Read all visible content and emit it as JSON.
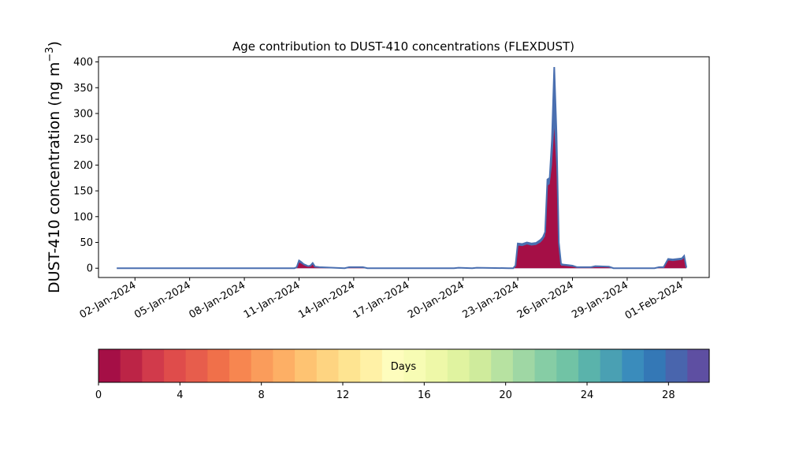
{
  "chart_data": {
    "type": "area",
    "title": "Age contribution to DUST-410 concentrations (FLEXDUST)",
    "ylabel": "DUST-410 concentration (ng m",
    "ylabel_sup": "−3",
    "ylabel_close": ")",
    "xlabel": "",
    "ylim": [
      -18,
      410
    ],
    "xlim": [
      "2023-12-31T00:00",
      "2024-02-02T12:00"
    ],
    "yticks": [
      0,
      50,
      100,
      150,
      200,
      250,
      300,
      350,
      400
    ],
    "xticks": [
      "2024-01-02",
      "2024-01-05",
      "2024-01-08",
      "2024-01-11",
      "2024-01-14",
      "2024-01-17",
      "2024-01-20",
      "2024-01-23",
      "2024-01-26",
      "2024-01-29",
      "2024-02-01"
    ],
    "xtick_labels": [
      "02-Jan-2024",
      "05-Jan-2024",
      "08-Jan-2024",
      "11-Jan-2024",
      "14-Jan-2024",
      "17-Jan-2024",
      "20-Jan-2024",
      "23-Jan-2024",
      "26-Jan-2024",
      "29-Jan-2024",
      "01-Feb-2024"
    ],
    "grid": false,
    "total_line_color": "#4a6fb0",
    "fill_color": "#a50f46",
    "x": [
      "2024-01-01T00:00",
      "2024-01-10T18:00",
      "2024-01-10T21:00",
      "2024-01-11T00:00",
      "2024-01-11T03:00",
      "2024-01-11T06:00",
      "2024-01-11T09:00",
      "2024-01-11T12:00",
      "2024-01-11T15:00",
      "2024-01-11T18:00",
      "2024-01-11T21:00",
      "2024-01-12T03:00",
      "2024-01-13T12:00",
      "2024-01-13T18:00",
      "2024-01-14T12:00",
      "2024-01-14T18:00",
      "2024-01-19T12:00",
      "2024-01-19T18:00",
      "2024-01-20T12:00",
      "2024-01-20T18:00",
      "2024-01-22T12:00",
      "2024-01-22T18:00",
      "2024-01-22T21:00",
      "2024-01-23T00:00",
      "2024-01-23T06:00",
      "2024-01-23T12:00",
      "2024-01-23T18:00",
      "2024-01-24T00:00",
      "2024-01-24T06:00",
      "2024-01-24T09:00",
      "2024-01-24T12:00",
      "2024-01-24T15:00",
      "2024-01-24T18:00",
      "2024-01-24T21:00",
      "2024-01-25T00:00",
      "2024-01-25T03:00",
      "2024-01-25T06:00",
      "2024-01-25T09:00",
      "2024-01-25T12:00",
      "2024-01-25T18:00",
      "2024-01-26T00:00",
      "2024-01-26T06:00",
      "2024-01-27T00:00",
      "2024-01-27T06:00",
      "2024-01-28T00:00",
      "2024-01-28T06:00",
      "2024-01-30T12:00",
      "2024-01-30T18:00",
      "2024-01-31T00:00",
      "2024-01-31T06:00",
      "2024-01-31T12:00",
      "2024-01-31T18:00",
      "2024-02-01T00:00",
      "2024-02-01T03:00",
      "2024-02-01T06:00"
    ],
    "series": [
      {
        "values": [
          0,
          0,
          2,
          15,
          12,
          8,
          6,
          4,
          5,
          10,
          3,
          2,
          0,
          2,
          2,
          0,
          0,
          1,
          0,
          1,
          0,
          0,
          5,
          48,
          47,
          50,
          48,
          49,
          55,
          60,
          70,
          172,
          175,
          250,
          390,
          260,
          50,
          8,
          7,
          6,
          5,
          2,
          2,
          4,
          3,
          0,
          0,
          2,
          2,
          18,
          17,
          18,
          19,
          24,
          1
        ],
        "color": "#4a6fb0"
      },
      {
        "values": [
          0,
          0,
          1,
          11,
          9,
          6,
          4,
          3,
          3,
          7,
          2,
          1,
          0,
          1,
          1,
          0,
          0,
          0,
          0,
          0,
          0,
          0,
          3,
          44,
          43,
          46,
          44,
          45,
          50,
          55,
          62,
          160,
          163,
          200,
          272,
          190,
          40,
          5,
          5,
          4,
          3,
          1,
          1,
          2,
          2,
          0,
          0,
          1,
          1,
          15,
          14,
          15,
          16,
          20,
          0
        ],
        "color": "#a50f46"
      }
    ],
    "colorbar": {
      "label": "Days",
      "min": 0,
      "max": 30,
      "ticks": [
        0,
        4,
        8,
        12,
        16,
        20,
        24,
        28
      ],
      "colors": [
        "#a50f46",
        "#bc2446",
        "#d13a4b",
        "#df4c4b",
        "#e75d4c",
        "#f0704a",
        "#f78650",
        "#fa9c5b",
        "#fdaf65",
        "#fec372",
        "#fed481",
        "#fee491",
        "#fff1a6",
        "#fefdbd",
        "#f7fcb4",
        "#eef8a8",
        "#e0f3a0",
        "#cfeb9c",
        "#b7e2a1",
        "#9fd7a4",
        "#86cda5",
        "#71c3a5",
        "#5ab3ab",
        "#4aa0b3",
        "#3a8cbc",
        "#3478b6",
        "#4965ad",
        "#5e4fa2"
      ]
    }
  }
}
